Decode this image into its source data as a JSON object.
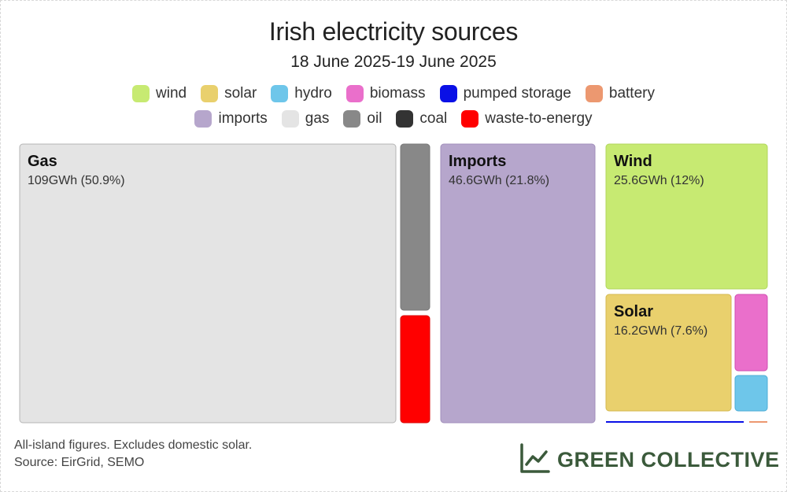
{
  "header": {
    "title": "Irish electricity sources",
    "subtitle": "18 June 2025-19 June 2025"
  },
  "legend": [
    {
      "label": "wind",
      "color": "#c7ea72"
    },
    {
      "label": "solar",
      "color": "#e9d06d"
    },
    {
      "label": "hydro",
      "color": "#6ec6ea"
    },
    {
      "label": "biomass",
      "color": "#ea6fcb"
    },
    {
      "label": "pumped storage",
      "color": "#0a10e6"
    },
    {
      "label": "battery",
      "color": "#ec9870"
    },
    {
      "label": "imports",
      "color": "#b6a6cc"
    },
    {
      "label": "gas",
      "color": "#e4e4e4"
    },
    {
      "label": "oil",
      "color": "#888888"
    },
    {
      "label": "coal",
      "color": "#333333"
    },
    {
      "label": "waste-to-energy",
      "color": "#ff0000"
    }
  ],
  "chart_data": {
    "type": "treemap",
    "unit": "GWh",
    "items": [
      {
        "key": "gas",
        "name": "Gas",
        "value": 109,
        "share_pct": 50.9,
        "label": "109GWh (50.9%)",
        "color": "#e4e4e4"
      },
      {
        "key": "oil",
        "name": "",
        "value": 5.8,
        "color": "#888888"
      },
      {
        "key": "waste",
        "name": "",
        "value": 3.8,
        "color": "#ff0000"
      },
      {
        "key": "imports",
        "name": "Imports",
        "value": 46.6,
        "share_pct": 21.8,
        "label": "46.6GWh (21.8%)",
        "color": "#b6a6cc"
      },
      {
        "key": "wind",
        "name": "Wind",
        "value": 25.6,
        "share_pct": 12,
        "label": "25.6GWh (12%)",
        "color": "#c7ea72"
      },
      {
        "key": "solar",
        "name": "Solar",
        "value": 16.2,
        "share_pct": 7.6,
        "label": "16.2GWh (7.6%)",
        "color": "#e9d06d"
      },
      {
        "key": "biomass",
        "name": "",
        "value": 2.2,
        "color": "#ea6fcb"
      },
      {
        "key": "hydro",
        "name": "",
        "value": 1,
        "color": "#6ec6ea"
      },
      {
        "key": "pumped",
        "name": "",
        "value": 0.3,
        "color": "#0a10e6"
      },
      {
        "key": "battery",
        "name": "",
        "value": 0.05,
        "color": "#ec9870"
      }
    ]
  },
  "footer": {
    "note": "All-island figures. Excludes domestic solar.",
    "source": "Source: EirGrid, SEMO",
    "brand": "GREEN COLLECTIVE"
  }
}
